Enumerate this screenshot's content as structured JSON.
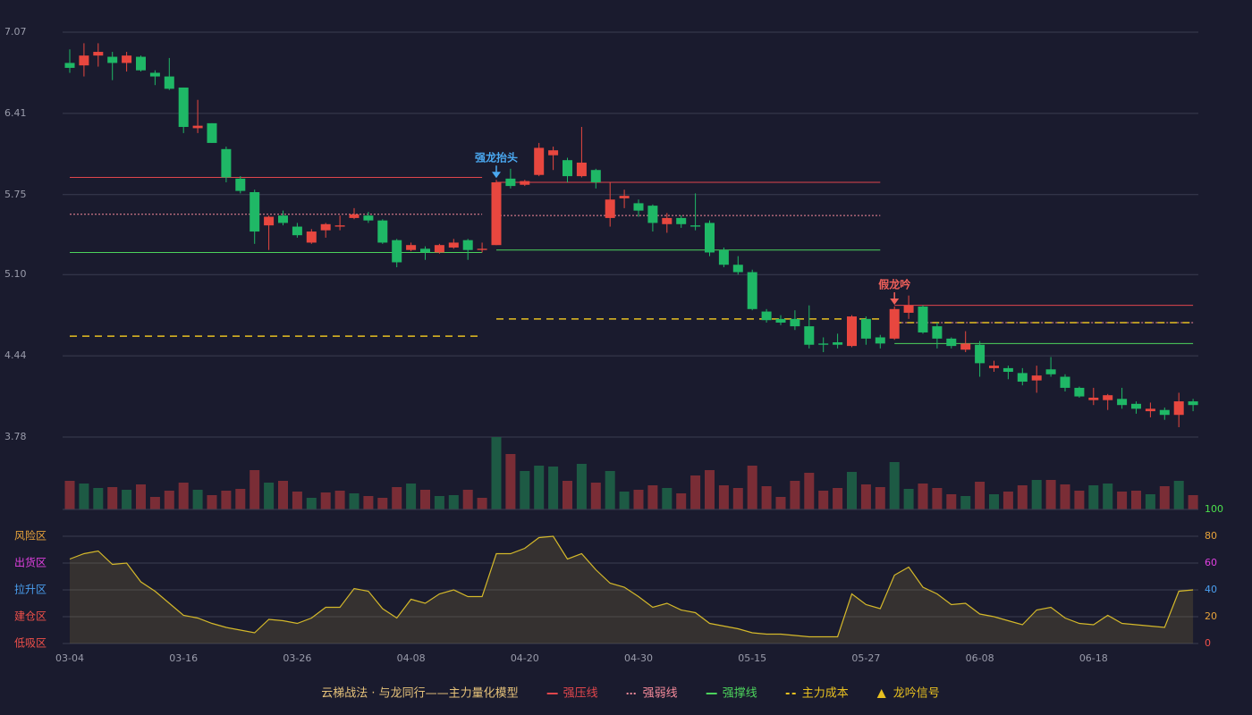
{
  "chart_data": [
    {
      "type": "candlestick",
      "ylim": [
        3.78,
        7.07
      ],
      "yticks": [
        {
          "value": 3.78,
          "label": "3.78"
        },
        {
          "value": 4.44,
          "label": "4.44"
        },
        {
          "value": 5.1,
          "label": "5.10"
        },
        {
          "value": 5.75,
          "label": "5.75"
        },
        {
          "value": 6.41,
          "label": "6.41"
        },
        {
          "value": 7.07,
          "label": "7.07"
        }
      ],
      "grid": true,
      "up_color": "#e8473f",
      "down_color": "#1fb866",
      "open": [
        6.82,
        6.8,
        6.88,
        6.87,
        6.82,
        6.87,
        6.74,
        6.71,
        6.62,
        6.29,
        6.33,
        6.12,
        5.88,
        5.77,
        5.5,
        5.58,
        5.49,
        5.36,
        5.46,
        5.49,
        5.56,
        5.58,
        5.54,
        5.38,
        5.3,
        5.31,
        5.28,
        5.32,
        5.38,
        5.3,
        5.34,
        5.88,
        5.83,
        5.91,
        6.07,
        6.03,
        5.9,
        5.95,
        5.56,
        5.72,
        5.68,
        5.66,
        5.51,
        5.56,
        5.5,
        5.52,
        5.3,
        5.18,
        5.12,
        4.8,
        4.74,
        4.74,
        4.68,
        4.54,
        4.55,
        4.52,
        4.74,
        4.59,
        4.58,
        4.79,
        4.84,
        4.68,
        4.58,
        4.49,
        4.53,
        4.34,
        4.34,
        4.3,
        4.24,
        4.33,
        4.27,
        4.18,
        4.08,
        4.08,
        4.09,
        4.05,
        3.99,
        4.0,
        3.96,
        4.07
      ],
      "high": [
        6.93,
        6.98,
        6.98,
        6.91,
        6.91,
        6.88,
        6.76,
        6.86,
        6.62,
        6.52,
        6.33,
        6.14,
        5.9,
        5.79,
        5.58,
        5.62,
        5.52,
        5.47,
        5.52,
        5.58,
        5.64,
        5.61,
        5.55,
        5.39,
        5.36,
        5.33,
        5.35,
        5.39,
        5.39,
        5.36,
        5.87,
        5.96,
        5.87,
        6.17,
        6.14,
        6.05,
        6.3,
        5.96,
        5.85,
        5.79,
        5.71,
        5.67,
        5.6,
        5.58,
        5.76,
        5.54,
        5.32,
        5.25,
        5.14,
        4.82,
        4.77,
        4.81,
        4.85,
        4.59,
        4.62,
        4.77,
        4.76,
        4.61,
        4.84,
        4.93,
        4.85,
        4.71,
        4.59,
        4.64,
        4.56,
        4.4,
        4.36,
        4.34,
        4.36,
        4.43,
        4.29,
        4.19,
        4.18,
        4.13,
        4.18,
        4.07,
        4.06,
        4.02,
        4.14,
        4.09
      ],
      "low": [
        6.74,
        6.71,
        6.79,
        6.68,
        6.75,
        6.75,
        6.64,
        6.6,
        6.25,
        6.25,
        6.17,
        5.85,
        5.76,
        5.35,
        5.3,
        5.5,
        5.4,
        5.35,
        5.4,
        5.46,
        5.55,
        5.52,
        5.35,
        5.16,
        5.29,
        5.22,
        5.27,
        5.31,
        5.22,
        5.28,
        5.34,
        5.8,
        5.82,
        5.9,
        5.95,
        5.85,
        5.89,
        5.8,
        5.49,
        5.64,
        5.57,
        5.45,
        5.44,
        5.48,
        5.46,
        5.25,
        5.16,
        5.1,
        4.81,
        4.71,
        4.69,
        4.65,
        4.5,
        4.47,
        4.5,
        4.51,
        4.53,
        4.5,
        4.57,
        4.74,
        4.62,
        4.5,
        4.5,
        4.47,
        4.27,
        4.31,
        4.25,
        4.2,
        4.14,
        4.27,
        4.15,
        4.1,
        4.04,
        4.0,
        4.01,
        3.97,
        3.94,
        3.92,
        3.86,
        3.99
      ],
      "close": [
        6.78,
        6.88,
        6.91,
        6.82,
        6.88,
        6.76,
        6.71,
        6.61,
        6.3,
        6.31,
        6.17,
        5.89,
        5.78,
        5.45,
        5.57,
        5.52,
        5.42,
        5.45,
        5.51,
        5.5,
        5.59,
        5.54,
        5.36,
        5.2,
        5.34,
        5.28,
        5.34,
        5.36,
        5.3,
        5.31,
        5.85,
        5.82,
        5.86,
        6.13,
        6.11,
        5.9,
        6.01,
        5.85,
        5.71,
        5.74,
        5.62,
        5.52,
        5.56,
        5.51,
        5.49,
        5.28,
        5.18,
        5.12,
        4.82,
        4.73,
        4.71,
        4.68,
        4.53,
        4.53,
        4.53,
        4.76,
        4.58,
        4.54,
        4.82,
        4.85,
        4.63,
        4.58,
        4.52,
        4.54,
        4.38,
        4.36,
        4.31,
        4.23,
        4.28,
        4.29,
        4.18,
        4.11,
        4.1,
        4.12,
        4.04,
        4.01,
        4.01,
        3.96,
        4.07,
        4.04
      ],
      "volume": {
        "values": [
          32,
          29,
          24,
          25,
          22,
          28,
          14,
          21,
          30,
          22,
          16,
          21,
          23,
          44,
          30,
          32,
          20,
          13,
          19,
          21,
          18,
          15,
          13,
          25,
          29,
          22,
          15,
          16,
          22,
          13,
          81,
          62,
          43,
          49,
          48,
          32,
          51,
          30,
          43,
          20,
          22,
          27,
          24,
          18,
          38,
          44,
          27,
          24,
          49,
          26,
          14,
          32,
          41,
          21,
          24,
          42,
          28,
          25,
          53,
          23,
          29,
          24,
          17,
          15,
          31,
          17,
          20,
          27,
          33,
          33,
          28,
          21,
          27,
          29,
          20,
          21,
          17,
          26,
          32,
          16
        ],
        "colors": [
          "#7a2d36",
          "#1d5a44",
          "#1d5a44",
          "#7a2d36",
          "#1d5a44",
          "#7a2d36",
          "#7a2d36",
          "#7a2d36",
          "#7a2d36",
          "#1d5a44",
          "#7a2d36",
          "#7a2d36",
          "#7a2d36",
          "#7a2d36",
          "#1d5a44",
          "#7a2d36",
          "#7a2d36",
          "#1d5a44",
          "#7a2d36",
          "#7a2d36",
          "#1d5a44",
          "#7a2d36",
          "#7a2d36",
          "#7a2d36",
          "#1d5a44",
          "#7a2d36",
          "#1d5a44",
          "#1d5a44",
          "#7a2d36",
          "#7a2d36",
          "#1d5a44",
          "#7a2d36",
          "#1d5a44",
          "#1d5a44",
          "#1d5a44",
          "#7a2d36",
          "#1d5a44",
          "#7a2d36",
          "#1d5a44",
          "#1d5a44",
          "#7a2d36",
          "#7a2d36",
          "#1d5a44",
          "#7a2d36",
          "#7a2d36",
          "#7a2d36",
          "#7a2d36",
          "#7a2d36",
          "#7a2d36",
          "#7a2d36",
          "#7a2d36",
          "#7a2d36",
          "#7a2d36",
          "#7a2d36",
          "#7a2d36",
          "#1d5a44",
          "#7a2d36",
          "#7a2d36",
          "#1d5a44",
          "#1d5a44",
          "#7a2d36",
          "#7a2d36",
          "#7a2d36",
          "#1d5a44",
          "#7a2d36",
          "#1d5a44",
          "#7a2d36",
          "#7a2d36",
          "#1d5a44",
          "#7a2d36",
          "#7a2d36",
          "#7a2d36",
          "#1d5a44",
          "#1d5a44",
          "#7a2d36",
          "#7a2d36",
          "#1d5a44",
          "#7a2d36",
          "#1d5a44",
          "#7a2d36"
        ]
      },
      "levels": [
        {
          "name": "强压线",
          "color": "#e0464c",
          "style": "solid",
          "values": [
            5.89,
            5.89,
            5.89,
            5.89,
            5.89,
            5.89,
            5.89,
            5.89,
            5.89,
            5.89,
            5.89,
            5.89,
            5.89,
            5.89,
            5.89,
            5.89,
            5.89,
            5.89,
            5.89,
            5.89,
            5.89,
            5.89,
            5.89,
            5.89,
            5.89,
            5.89,
            5.89,
            5.89,
            5.89,
            5.89,
            5.85,
            5.85,
            5.85,
            5.85,
            5.85,
            5.85,
            5.85,
            5.85,
            5.85,
            5.85,
            5.85,
            5.85,
            5.85,
            5.85,
            5.85,
            5.85,
            5.85,
            5.85,
            5.85,
            5.85,
            5.85,
            5.85,
            5.85,
            5.85,
            5.85,
            5.85,
            5.85,
            5.85,
            4.85,
            4.85,
            4.85,
            4.85,
            4.85,
            4.85,
            4.85,
            4.85,
            4.85,
            4.85,
            4.85,
            4.85,
            4.85,
            4.85,
            4.85,
            4.85,
            4.85,
            4.85,
            4.85,
            4.85,
            4.85,
            4.85
          ]
        },
        {
          "name": "强弱线",
          "color": "#f58a9a",
          "style": "dotted",
          "values": [
            5.59,
            5.59,
            5.59,
            5.59,
            5.59,
            5.59,
            5.59,
            5.59,
            5.59,
            5.59,
            5.59,
            5.59,
            5.59,
            5.59,
            5.59,
            5.59,
            5.59,
            5.59,
            5.59,
            5.59,
            5.59,
            5.59,
            5.59,
            5.59,
            5.59,
            5.59,
            5.59,
            5.59,
            5.59,
            5.59,
            5.58,
            5.58,
            5.58,
            5.58,
            5.58,
            5.58,
            5.58,
            5.58,
            5.58,
            5.58,
            5.58,
            5.58,
            5.58,
            5.58,
            5.58,
            5.58,
            5.58,
            5.58,
            5.58,
            5.58,
            5.58,
            5.58,
            5.58,
            5.58,
            5.58,
            5.58,
            5.58,
            5.58,
            4.71,
            4.71,
            4.71,
            4.71,
            4.71,
            4.71,
            4.71,
            4.71,
            4.71,
            4.71,
            4.71,
            4.71,
            4.71,
            4.71,
            4.71,
            4.71,
            4.71,
            4.71,
            4.71,
            4.71,
            4.71,
            4.71
          ]
        },
        {
          "name": "强撑线",
          "color": "#4cd35c",
          "style": "solid",
          "values": [
            5.28,
            5.28,
            5.28,
            5.28,
            5.28,
            5.28,
            5.28,
            5.28,
            5.28,
            5.28,
            5.28,
            5.28,
            5.28,
            5.28,
            5.28,
            5.28,
            5.28,
            5.28,
            5.28,
            5.28,
            5.28,
            5.28,
            5.28,
            5.28,
            5.28,
            5.28,
            5.28,
            5.28,
            5.28,
            5.28,
            5.3,
            5.3,
            5.3,
            5.3,
            5.3,
            5.3,
            5.3,
            5.3,
            5.3,
            5.3,
            5.3,
            5.3,
            5.3,
            5.3,
            5.3,
            5.3,
            5.3,
            5.3,
            5.3,
            5.3,
            5.3,
            5.3,
            5.3,
            5.3,
            5.3,
            5.3,
            5.3,
            5.3,
            4.54,
            4.54,
            4.54,
            4.54,
            4.54,
            4.54,
            4.54,
            4.54,
            4.54,
            4.54,
            4.54,
            4.54,
            4.54,
            4.54,
            4.54,
            4.54,
            4.54,
            4.54,
            4.54,
            4.54,
            4.54,
            4.54
          ]
        },
        {
          "name": "主力成本",
          "color": "#e8c020",
          "style": "dashed",
          "values": [
            4.6,
            4.6,
            4.6,
            4.6,
            4.6,
            4.6,
            4.6,
            4.6,
            4.6,
            4.6,
            4.6,
            4.6,
            4.6,
            4.6,
            4.6,
            4.6,
            4.6,
            4.6,
            4.6,
            4.6,
            4.6,
            4.6,
            4.6,
            4.6,
            4.6,
            4.6,
            4.6,
            4.6,
            4.6,
            4.6,
            4.74,
            4.74,
            4.74,
            4.74,
            4.74,
            4.74,
            4.74,
            4.74,
            4.74,
            4.74,
            4.74,
            4.74,
            4.74,
            4.74,
            4.74,
            4.74,
            4.74,
            4.74,
            4.74,
            4.74,
            4.74,
            4.74,
            4.74,
            4.74,
            4.74,
            4.74,
            4.74,
            4.74,
            4.71,
            4.71,
            4.71,
            4.71,
            4.71,
            4.71,
            4.71,
            4.71,
            4.71,
            4.71,
            4.71,
            4.71,
            4.71,
            4.71,
            4.71,
            4.71,
            4.71,
            4.71,
            4.71,
            4.71,
            4.71,
            4.71
          ]
        }
      ],
      "signals": [
        {
          "label": "强龙抬头",
          "at": 30,
          "color": "#4aa8f0"
        },
        {
          "label": "假龙吟",
          "at": 58,
          "color": "#f0605a"
        }
      ],
      "legend": {
        "title": "云梯战法 · 与龙同行——主力量化模型",
        "signal": "龙吟信号",
        "signal_color": "#e8c020"
      }
    },
    {
      "type": "area",
      "categories": [
        "03-04",
        null,
        null,
        null,
        null,
        null,
        null,
        null,
        "03-16",
        null,
        null,
        null,
        null,
        null,
        null,
        null,
        "03-26",
        null,
        null,
        null,
        null,
        null,
        null,
        null,
        "04-08",
        null,
        null,
        null,
        null,
        null,
        null,
        null,
        "04-20",
        null,
        null,
        null,
        null,
        null,
        null,
        null,
        "04-30",
        null,
        null,
        null,
        null,
        null,
        null,
        null,
        "05-15",
        null,
        null,
        null,
        null,
        null,
        null,
        null,
        "05-27",
        null,
        null,
        null,
        null,
        null,
        null,
        null,
        "06-08",
        null,
        null,
        null,
        null,
        null,
        null,
        null,
        "06-18",
        null,
        null,
        null,
        null,
        null,
        null,
        null
      ],
      "values": [
        63,
        67,
        69,
        59,
        60,
        46,
        39,
        30,
        21,
        19,
        15,
        12,
        10,
        8,
        18,
        17,
        15,
        19,
        27,
        27,
        41,
        39,
        26,
        19,
        33,
        30,
        37,
        40,
        35,
        35,
        67,
        67,
        71,
        79,
        80,
        63,
        67,
        55,
        45,
        42,
        35,
        27,
        30,
        25,
        23,
        15,
        13,
        11,
        8,
        7,
        7,
        6,
        5,
        5,
        5,
        37,
        29,
        26,
        51,
        57,
        42,
        37,
        29,
        30,
        22,
        20,
        17,
        14,
        25,
        27,
        19,
        15,
        14,
        21,
        15,
        14,
        13,
        12,
        39,
        40
      ],
      "color": "#d4b82a",
      "ylim": [
        0,
        100
      ],
      "yticks": [
        0,
        20,
        40,
        60,
        80,
        100
      ],
      "ytick_colors": [
        "#f0504a",
        "#e8a33a",
        "#4a9ff0",
        "#e040e0",
        "#e8a33a",
        "#4ce04c"
      ],
      "zones": [
        {
          "label": "风险区",
          "value": 80,
          "color": "#e8a33a"
        },
        {
          "label": "出货区",
          "value": 60,
          "color": "#e040e0"
        },
        {
          "label": "拉升区",
          "value": 40,
          "color": "#4a9ff0"
        },
        {
          "label": "建仓区",
          "value": 20,
          "color": "#f0504a"
        },
        {
          "label": "低吸区",
          "value": 0,
          "color": "#f0504a"
        }
      ]
    }
  ]
}
